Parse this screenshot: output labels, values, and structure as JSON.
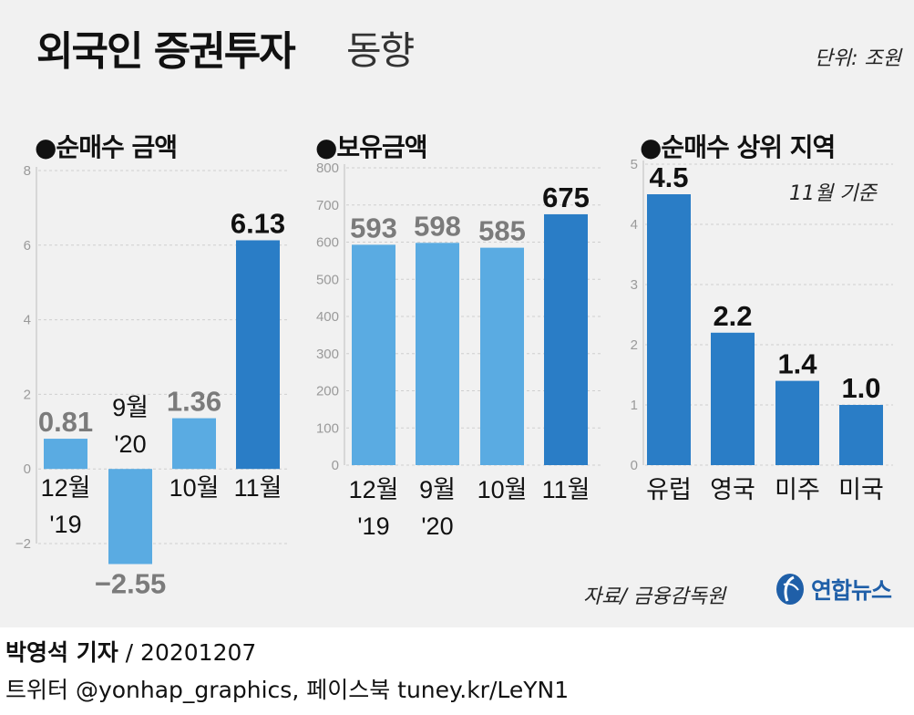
{
  "header": {
    "title_bold": "외국인 증권투자",
    "title_light": "동향",
    "unit": "단위: 조원"
  },
  "sections": {
    "net_purchase": "●순매수 금액",
    "holdings": "●보유금액",
    "top_regions": "●순매수 상위 지역",
    "region_note": "11월 기준"
  },
  "footer": {
    "source": "자료/ 금융감독원",
    "logo_text": "연합뉴스",
    "reporter": "박영석 기자",
    "date": "/ 20201207",
    "social": "트위터 @yonhap_graphics, 페이스북 tuney.kr/LeYN1"
  },
  "colors": {
    "light_bar": "#5aabe2",
    "dark_bar": "#2a7dc6",
    "light_label": "#7b7b7b",
    "dark_label": "#111111",
    "grid": "#cfcfcf"
  },
  "chart_data": [
    {
      "id": "net_purchase",
      "type": "bar",
      "title": "●순매수 금액",
      "ylim": [
        -2,
        8
      ],
      "yticks": [
        -2,
        0,
        2,
        4,
        6,
        8
      ],
      "ytick_labels": [
        "−2",
        "0",
        "2",
        "4",
        "6",
        "8"
      ],
      "categories": [
        [
          "12월",
          "'19"
        ],
        [
          "9월",
          "'20"
        ],
        [
          "10월",
          ""
        ],
        [
          "11월",
          ""
        ]
      ],
      "values": [
        0.81,
        -2.55,
        1.36,
        6.13
      ],
      "value_labels": [
        "0.81",
        "−2.55",
        "1.36",
        "6.13"
      ],
      "highlight": [
        false,
        false,
        false,
        true
      ]
    },
    {
      "id": "holdings",
      "type": "bar",
      "title": "●보유금액",
      "ylim": [
        0,
        800
      ],
      "yticks": [
        0,
        100,
        200,
        300,
        400,
        500,
        600,
        700,
        800
      ],
      "ytick_labels": [
        "0",
        "100",
        "200",
        "300",
        "400",
        "500",
        "600",
        "700",
        "800"
      ],
      "categories": [
        [
          "12월",
          "'19"
        ],
        [
          "9월",
          "'20"
        ],
        [
          "10월",
          ""
        ],
        [
          "11월",
          ""
        ]
      ],
      "values": [
        593,
        598,
        585,
        675
      ],
      "value_labels": [
        "593",
        "598",
        "585",
        "675"
      ],
      "highlight": [
        false,
        false,
        false,
        true
      ]
    },
    {
      "id": "top_regions",
      "type": "bar",
      "title": "●순매수 상위 지역",
      "ylim": [
        0,
        5
      ],
      "yticks": [
        0,
        1,
        2,
        3,
        4,
        5
      ],
      "ytick_labels": [
        "0",
        "1",
        "2",
        "3",
        "4",
        "5"
      ],
      "categories": [
        [
          "유럽",
          ""
        ],
        [
          "영국",
          ""
        ],
        [
          "미주",
          ""
        ],
        [
          "미국",
          ""
        ]
      ],
      "values": [
        4.5,
        2.2,
        1.4,
        1.0
      ],
      "value_labels": [
        "4.5",
        "2.2",
        "1.4",
        "1.0"
      ],
      "highlight": [
        true,
        true,
        true,
        true
      ]
    }
  ]
}
